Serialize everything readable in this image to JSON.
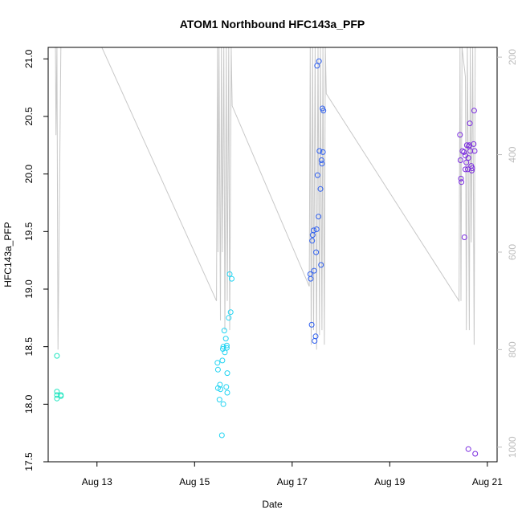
{
  "chart_data": {
    "type": "scatter",
    "title": "ATOM1 Northbound HFC143a_PFP",
    "xlabel": "Date",
    "ylabel": "HFC143a_PFP",
    "x_unit": "days of August 2016",
    "xlim": [
      12.0,
      21.2
    ],
    "ylim": [
      17.5,
      21.1
    ],
    "x_ticks": [
      {
        "x": 13,
        "label": "Aug 13"
      },
      {
        "x": 15,
        "label": "Aug 15"
      },
      {
        "x": 17,
        "label": "Aug 17"
      },
      {
        "x": 19,
        "label": "Aug 19"
      },
      {
        "x": 21,
        "label": "Aug 21"
      }
    ],
    "y_ticks": [
      "17.5",
      "18.0",
      "18.5",
      "19.0",
      "19.5",
      "20.0",
      "20.5",
      "21.0"
    ],
    "right_axis": {
      "description": "secondary altitude axis (inverted)",
      "ylim": [
        1030,
        180
      ],
      "ticks": [
        "200",
        "400",
        "600",
        "800",
        "1000"
      ],
      "color": "#bdbdbd"
    },
    "grid": false,
    "legend": "none",
    "series": [
      {
        "color": "#22e6c0",
        "points": [
          [
            12.18,
            18.42
          ],
          [
            12.18,
            18.11
          ],
          [
            12.18,
            18.08
          ],
          [
            12.18,
            18.05
          ],
          [
            12.26,
            18.07
          ],
          [
            12.26,
            18.08
          ]
        ]
      },
      {
        "color": "#22d4f2",
        "points": [
          [
            15.47,
            18.36
          ],
          [
            15.48,
            18.3
          ],
          [
            15.48,
            18.14
          ],
          [
            15.52,
            18.17
          ],
          [
            15.51,
            18.04
          ],
          [
            15.53,
            18.13
          ],
          [
            15.56,
            17.73
          ],
          [
            15.57,
            18.38
          ],
          [
            15.58,
            18.48
          ],
          [
            15.59,
            18.5
          ],
          [
            15.59,
            18.0
          ],
          [
            15.61,
            18.64
          ],
          [
            15.62,
            18.45
          ],
          [
            15.64,
            18.57
          ],
          [
            15.66,
            18.51
          ],
          [
            15.65,
            18.15
          ],
          [
            15.66,
            18.49
          ],
          [
            15.67,
            18.1
          ],
          [
            15.67,
            18.27
          ],
          [
            15.7,
            18.75
          ],
          [
            15.72,
            19.13
          ],
          [
            15.74,
            18.8
          ],
          [
            15.76,
            19.09
          ]
        ]
      },
      {
        "color": "#2e5ff0",
        "points": [
          [
            17.37,
            19.13
          ],
          [
            17.38,
            19.09
          ],
          [
            17.4,
            18.69
          ],
          [
            17.41,
            19.42
          ],
          [
            17.42,
            19.47
          ],
          [
            17.44,
            19.51
          ],
          [
            17.45,
            19.16
          ],
          [
            17.46,
            18.55
          ],
          [
            17.48,
            18.59
          ],
          [
            17.49,
            19.32
          ],
          [
            17.5,
            19.52
          ],
          [
            17.51,
            20.94
          ],
          [
            17.52,
            19.99
          ],
          [
            17.54,
            19.63
          ],
          [
            17.55,
            20.98
          ],
          [
            17.56,
            20.2
          ],
          [
            17.58,
            19.87
          ],
          [
            17.59,
            19.21
          ],
          [
            17.6,
            20.12
          ],
          [
            17.61,
            20.09
          ],
          [
            17.62,
            20.57
          ],
          [
            17.63,
            20.19
          ],
          [
            17.64,
            20.55
          ]
        ]
      },
      {
        "color": "#7b2ce0",
        "points": [
          [
            20.44,
            20.34
          ],
          [
            20.45,
            20.12
          ],
          [
            20.46,
            19.96
          ],
          [
            20.47,
            19.93
          ],
          [
            20.49,
            20.2
          ],
          [
            20.52,
            20.19
          ],
          [
            20.53,
            19.45
          ],
          [
            20.55,
            20.04
          ],
          [
            20.55,
            20.16
          ],
          [
            20.57,
            20.1
          ],
          [
            20.58,
            20.25
          ],
          [
            20.6,
            20.04
          ],
          [
            20.61,
            20.14
          ],
          [
            20.61,
            17.61
          ],
          [
            20.62,
            20.24
          ],
          [
            20.63,
            20.25
          ],
          [
            20.64,
            20.44
          ],
          [
            20.65,
            20.2
          ],
          [
            20.67,
            20.07
          ],
          [
            20.68,
            20.03
          ],
          [
            20.69,
            20.05
          ],
          [
            20.72,
            20.26
          ],
          [
            20.73,
            20.55
          ],
          [
            20.74,
            20.2
          ],
          [
            20.75,
            17.57
          ]
        ]
      }
    ],
    "altitude_trace": {
      "color": "#c8c8c8",
      "points": [
        [
          12.15,
          180
        ],
        [
          12.16,
          360
        ],
        [
          12.18,
          180
        ],
        [
          12.2,
          800
        ],
        [
          12.26,
          180
        ],
        [
          13.1,
          180
        ],
        [
          15.45,
          700
        ],
        [
          15.47,
          180
        ],
        [
          15.48,
          600
        ],
        [
          15.5,
          180
        ],
        [
          15.53,
          740
        ],
        [
          15.55,
          180
        ],
        [
          15.57,
          600
        ],
        [
          15.6,
          180
        ],
        [
          15.62,
          760
        ],
        [
          15.65,
          180
        ],
        [
          15.67,
          700
        ],
        [
          15.7,
          180
        ],
        [
          15.72,
          760
        ],
        [
          15.75,
          180
        ],
        [
          15.77,
          300
        ],
        [
          17.35,
          670
        ],
        [
          17.37,
          180
        ],
        [
          17.39,
          790
        ],
        [
          17.42,
          180
        ],
        [
          17.44,
          760
        ],
        [
          17.47,
          180
        ],
        [
          17.5,
          800
        ],
        [
          17.53,
          180
        ],
        [
          17.56,
          770
        ],
        [
          17.58,
          180
        ],
        [
          17.61,
          760
        ],
        [
          17.63,
          180
        ],
        [
          17.66,
          790
        ],
        [
          17.68,
          180
        ],
        [
          17.7,
          275
        ],
        [
          20.42,
          700
        ],
        [
          20.44,
          180
        ],
        [
          20.46,
          700
        ],
        [
          20.48,
          180
        ],
        [
          20.55,
          240
        ],
        [
          20.57,
          760
        ],
        [
          20.59,
          180
        ],
        [
          20.61,
          440
        ],
        [
          20.63,
          760
        ],
        [
          20.65,
          180
        ],
        [
          20.67,
          580
        ],
        [
          20.7,
          180
        ],
        [
          20.73,
          790
        ],
        [
          20.75,
          180
        ]
      ]
    }
  }
}
